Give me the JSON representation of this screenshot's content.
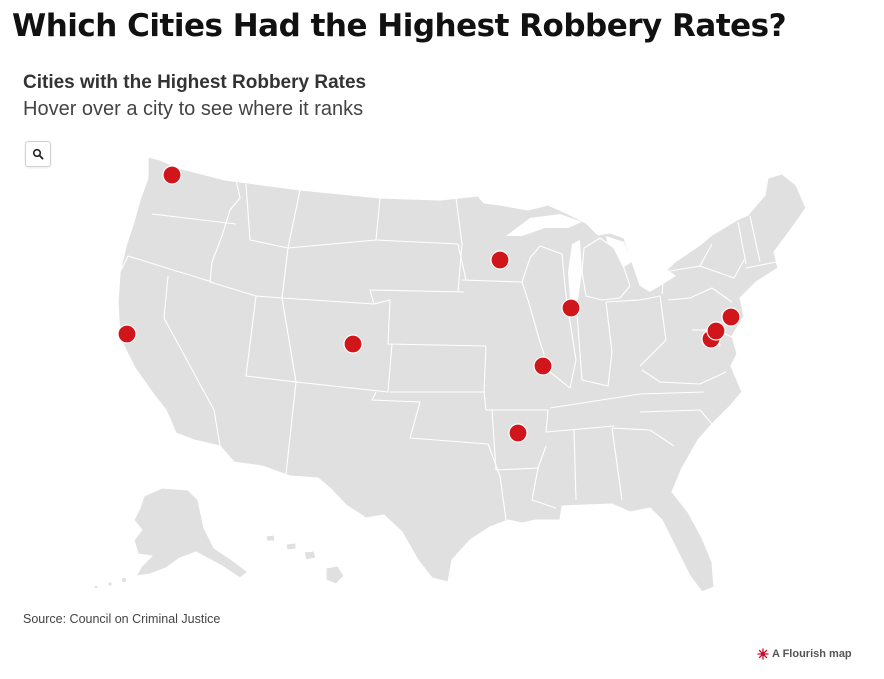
{
  "header": {
    "title": "Which Cities Had the Highest Robbery Rates?"
  },
  "map": {
    "title": "Cities with the Highest Robbery Rates",
    "subtitle": "Hover over a city to see where it ranks",
    "search_icon": "search-icon",
    "land_color": "#e0e0e0",
    "border_color": "#ffffff",
    "marker_color": "#d0161b",
    "markers": [
      {
        "region": "Washington"
      },
      {
        "region": "California"
      },
      {
        "region": "Colorado"
      },
      {
        "region": "Minnesota"
      },
      {
        "region": "Illinois"
      },
      {
        "region": "Missouri"
      },
      {
        "region": "Arkansas"
      },
      {
        "region": "Maryland"
      },
      {
        "region": "Maryland"
      },
      {
        "region": "Pennsylvania"
      }
    ]
  },
  "footer": {
    "source": "Source: Council on Criminal Justice",
    "credit": "A Flourish map",
    "credit_icon": "flourish-logo-icon"
  }
}
